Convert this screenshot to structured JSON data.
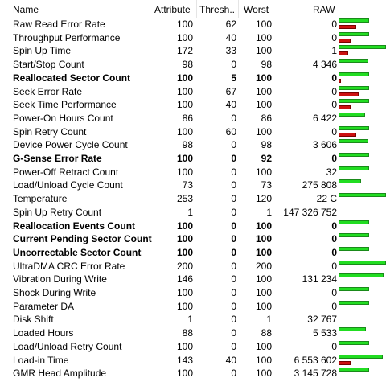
{
  "columns": {
    "name": "Name",
    "attribute": "Attribute",
    "threshold": "Thresh...",
    "worst": "Worst",
    "raw": "RAW"
  },
  "colors": {
    "good_bar": "#22dd22",
    "bad_bar": "#cc1111"
  },
  "rows": [
    {
      "name": "Raw Read Error Rate",
      "attribute": "100",
      "threshold": "62",
      "worst": "100",
      "raw": "0",
      "bold": false,
      "green": 0.65,
      "red": 0.38
    },
    {
      "name": "Throughput Performance",
      "attribute": "100",
      "threshold": "40",
      "worst": "100",
      "raw": "0",
      "bold": false,
      "green": 0.65,
      "red": 0.25
    },
    {
      "name": "Spin Up Time",
      "attribute": "172",
      "threshold": "33",
      "worst": "100",
      "raw": "1",
      "bold": false,
      "green": 1.0,
      "red": 0.2
    },
    {
      "name": "Start/Stop Count",
      "attribute": "98",
      "threshold": "0",
      "worst": "98",
      "raw": "4 346",
      "bold": false,
      "green": 0.62,
      "red": 0
    },
    {
      "name": "Reallocated Sector Count",
      "attribute": "100",
      "threshold": "5",
      "worst": "100",
      "raw": "0",
      "bold": true,
      "green": 0.65,
      "red": 0.05
    },
    {
      "name": "Seek Error Rate",
      "attribute": "100",
      "threshold": "67",
      "worst": "100",
      "raw": "0",
      "bold": false,
      "green": 0.65,
      "red": 0.42
    },
    {
      "name": "Seek Time Performance",
      "attribute": "100",
      "threshold": "40",
      "worst": "100",
      "raw": "0",
      "bold": false,
      "green": 0.65,
      "red": 0.25
    },
    {
      "name": "Power-On Hours Count",
      "attribute": "86",
      "threshold": "0",
      "worst": "86",
      "raw": "6 422",
      "bold": false,
      "green": 0.56,
      "red": 0
    },
    {
      "name": "Spin Retry Count",
      "attribute": "100",
      "threshold": "60",
      "worst": "100",
      "raw": "0",
      "bold": false,
      "green": 0.65,
      "red": 0.38
    },
    {
      "name": "Device Power Cycle Count",
      "attribute": "98",
      "threshold": "0",
      "worst": "98",
      "raw": "3 606",
      "bold": false,
      "green": 0.62,
      "red": 0
    },
    {
      "name": "G-Sense Error Rate",
      "attribute": "100",
      "threshold": "0",
      "worst": "92",
      "raw": "0",
      "bold": true,
      "green": 0.65,
      "red": 0
    },
    {
      "name": "Power-Off Retract Count",
      "attribute": "100",
      "threshold": "0",
      "worst": "100",
      "raw": "32",
      "bold": false,
      "green": 0.65,
      "red": 0
    },
    {
      "name": "Load/Unload Cycle Count",
      "attribute": "73",
      "threshold": "0",
      "worst": "73",
      "raw": "275 808",
      "bold": false,
      "green": 0.47,
      "red": 0
    },
    {
      "name": "Temperature",
      "attribute": "253",
      "threshold": "0",
      "worst": "120",
      "raw": "22 C",
      "bold": false,
      "green": 1.0,
      "red": 0
    },
    {
      "name": "Spin Up Retry Count",
      "attribute": "1",
      "threshold": "0",
      "worst": "1",
      "raw": "147 326 752",
      "bold": false,
      "green": 0,
      "red": 0
    },
    {
      "name": "Reallocation Events Count",
      "attribute": "100",
      "threshold": "0",
      "worst": "100",
      "raw": "0",
      "bold": true,
      "green": 0.65,
      "red": 0
    },
    {
      "name": "Current Pending Sector Count",
      "attribute": "100",
      "threshold": "0",
      "worst": "100",
      "raw": "0",
      "bold": true,
      "green": 0.65,
      "red": 0
    },
    {
      "name": "Uncorrectable Sector Count",
      "attribute": "100",
      "threshold": "0",
      "worst": "100",
      "raw": "0",
      "bold": true,
      "green": 0.65,
      "red": 0
    },
    {
      "name": "UltraDMA CRC Error Rate",
      "attribute": "200",
      "threshold": "0",
      "worst": "200",
      "raw": "0",
      "bold": false,
      "green": 1.0,
      "red": 0
    },
    {
      "name": "Vibration During Write",
      "attribute": "146",
      "threshold": "0",
      "worst": "100",
      "raw": "131 234",
      "bold": false,
      "green": 0.95,
      "red": 0
    },
    {
      "name": "Shock During Write",
      "attribute": "100",
      "threshold": "0",
      "worst": "100",
      "raw": "0",
      "bold": false,
      "green": 0.65,
      "red": 0
    },
    {
      "name": "Parameter DA",
      "attribute": "100",
      "threshold": "0",
      "worst": "100",
      "raw": "0",
      "bold": false,
      "green": 0.65,
      "red": 0
    },
    {
      "name": "Disk Shift",
      "attribute": "1",
      "threshold": "0",
      "worst": "1",
      "raw": "32 767",
      "bold": false,
      "green": 0,
      "red": 0
    },
    {
      "name": "Loaded Hours",
      "attribute": "88",
      "threshold": "0",
      "worst": "88",
      "raw": "5 533",
      "bold": false,
      "green": 0.57,
      "red": 0
    },
    {
      "name": "Load/Unload Retry Count",
      "attribute": "100",
      "threshold": "0",
      "worst": "100",
      "raw": "0",
      "bold": false,
      "green": 0.65,
      "red": 0
    },
    {
      "name": "Load-in Time",
      "attribute": "143",
      "threshold": "40",
      "worst": "100",
      "raw": "6 553 602",
      "bold": false,
      "green": 0.93,
      "red": 0.25
    },
    {
      "name": "GMR Head Amplitude",
      "attribute": "100",
      "threshold": "0",
      "worst": "100",
      "raw": "3 145 728",
      "bold": false,
      "green": 0.65,
      "red": 0
    }
  ]
}
